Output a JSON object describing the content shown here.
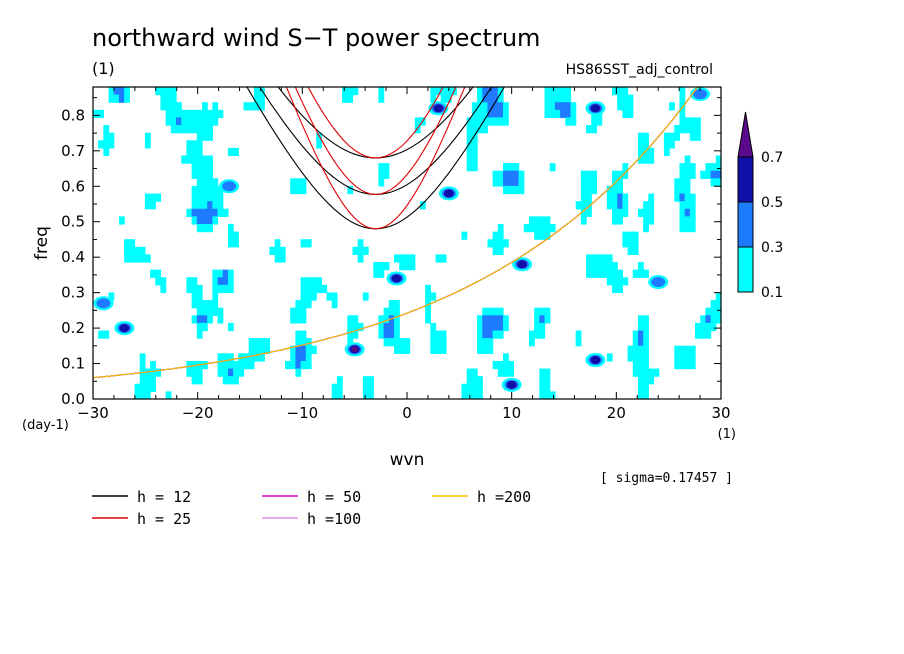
{
  "chart_data": {
    "type": "heatmap",
    "title": "northward wind S−T power spectrum",
    "units_label": "(1)",
    "run_label": "HS86SST_adj_control",
    "xlabel": "wvn",
    "ylabel": "freq",
    "x_units": "(1)",
    "y_units": "(day-1)",
    "xlim": [
      -30,
      30
    ],
    "ylim": [
      0,
      0.88
    ],
    "x_ticks": [
      -30,
      -20,
      -10,
      0,
      10,
      20,
      30
    ],
    "x_tick_labels": [
      "−30",
      "−20",
      "−10",
      "0",
      "10",
      "20",
      "30"
    ],
    "y_ticks": [
      0,
      0.1,
      0.2,
      0.3,
      0.4,
      0.5,
      0.6,
      0.7,
      0.8
    ],
    "y_tick_labels": [
      "0.0",
      "0.1",
      "0.2",
      "0.3",
      "0.4",
      "0.5",
      "0.6",
      "0.7",
      "0.8"
    ],
    "sigma_label": "[ sigma=0.17457 ]",
    "colorbar": {
      "levels": [
        0.1,
        0.3,
        0.5,
        0.7
      ],
      "level_labels": [
        "0.1",
        "0.3",
        "0.5",
        "0.7"
      ],
      "colors": [
        "#00ffff",
        "#1e7bff",
        "#1010a8",
        "#5a0a8c"
      ]
    },
    "contour_field": {
      "description_levels": [
        0.1,
        0.3,
        0.5
      ],
      "seed": 86
    },
    "dispersion_curves": [
      {
        "name": "h = 12",
        "h": 12,
        "color": "#000000"
      },
      {
        "name": "h = 25",
        "h": 25,
        "color": "#e00000"
      },
      {
        "name": "h = 50",
        "h": 50,
        "color": "#d000b0"
      },
      {
        "name": "h =100",
        "h": 100,
        "color": "#e090e0"
      },
      {
        "name": "h =200",
        "h": 200,
        "color": "#f0c000"
      }
    ],
    "hot_spots": [
      {
        "x": -5,
        "y": 0.14,
        "level": 0.7
      },
      {
        "x": 3,
        "y": 0.82,
        "level": 0.5
      },
      {
        "x": 4,
        "y": 0.58,
        "level": 0.5
      },
      {
        "x": 11,
        "y": 0.38,
        "level": 0.5
      },
      {
        "x": -1,
        "y": 0.34,
        "level": 0.5
      },
      {
        "x": 18,
        "y": 0.82,
        "level": 0.5
      },
      {
        "x": -27,
        "y": 0.2,
        "level": 0.5
      },
      {
        "x": -17,
        "y": 0.6,
        "level": 0.3
      },
      {
        "x": 18,
        "y": 0.11,
        "level": 0.5
      },
      {
        "x": 10,
        "y": 0.04,
        "level": 0.5
      },
      {
        "x": -29,
        "y": 0.27,
        "level": 0.3
      },
      {
        "x": 28,
        "y": 0.86,
        "level": 0.3
      },
      {
        "x": 24,
        "y": 0.33,
        "level": 0.3
      }
    ]
  }
}
